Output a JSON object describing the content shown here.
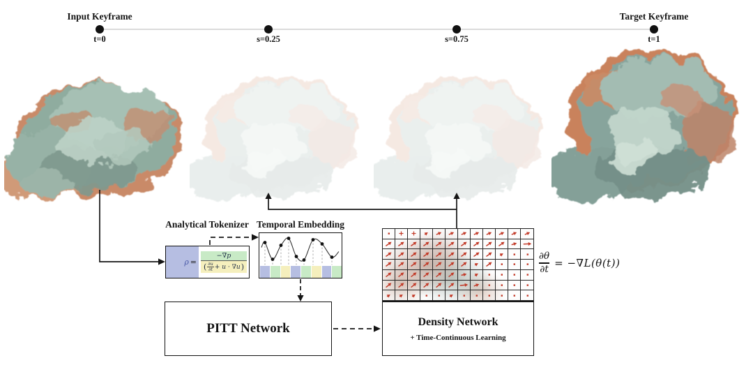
{
  "figure": {
    "timeline": {
      "items": [
        {
          "above": "Input Keyframe",
          "below": "t=0"
        },
        {
          "above": "",
          "below": "s=0.25"
        },
        {
          "above": "",
          "below": "s=0.75"
        },
        {
          "above": "Target Keyframe",
          "below": "t=1"
        }
      ]
    },
    "tokenizer": {
      "title": "Analytical Tokenizer",
      "eq_lhs": "ρ",
      "eq_sign": "=",
      "eq_num": "−∇p",
      "eq_den_open": "(",
      "eq_den_frac_num": "∂u",
      "eq_den_frac_den": "∂t",
      "eq_den_rest": "+ u · ∇u",
      "eq_den_close": ")"
    },
    "temporal": {
      "title": "Temporal Embedding",
      "strip": [
        "lavender",
        "green",
        "yellow",
        "lavender",
        "green",
        "yellow",
        "lavender",
        "green"
      ]
    },
    "pitt": {
      "label": "PITT Network"
    },
    "density": {
      "label": "Density Network",
      "sublabel": "+ Time-Continuous Learning"
    },
    "theta": {
      "frac_num": "∂θ",
      "frac_den": "∂t",
      "rhs": "= −∇L(θ(t))"
    },
    "field_grid": {
      "rows": 7,
      "cols": 12,
      "pattern": [
        ".ppcbbbbbbbb",
        "aaaaaaaaaabE",
        "aaaaaaaaac..",
        "aaaaaaaca...",
        "aaaaaaec....",
        "aaaaaaEb....",
        "ccc..c......"
      ]
    },
    "colors": {
      "lavender": "#b6bee2",
      "green": "#c8eac6",
      "yellow": "#f5efbd",
      "arrow_red": "#c23a28",
      "line": "#141414",
      "timeline_track": "#dadada",
      "rho": "#4a5aa8"
    }
  }
}
